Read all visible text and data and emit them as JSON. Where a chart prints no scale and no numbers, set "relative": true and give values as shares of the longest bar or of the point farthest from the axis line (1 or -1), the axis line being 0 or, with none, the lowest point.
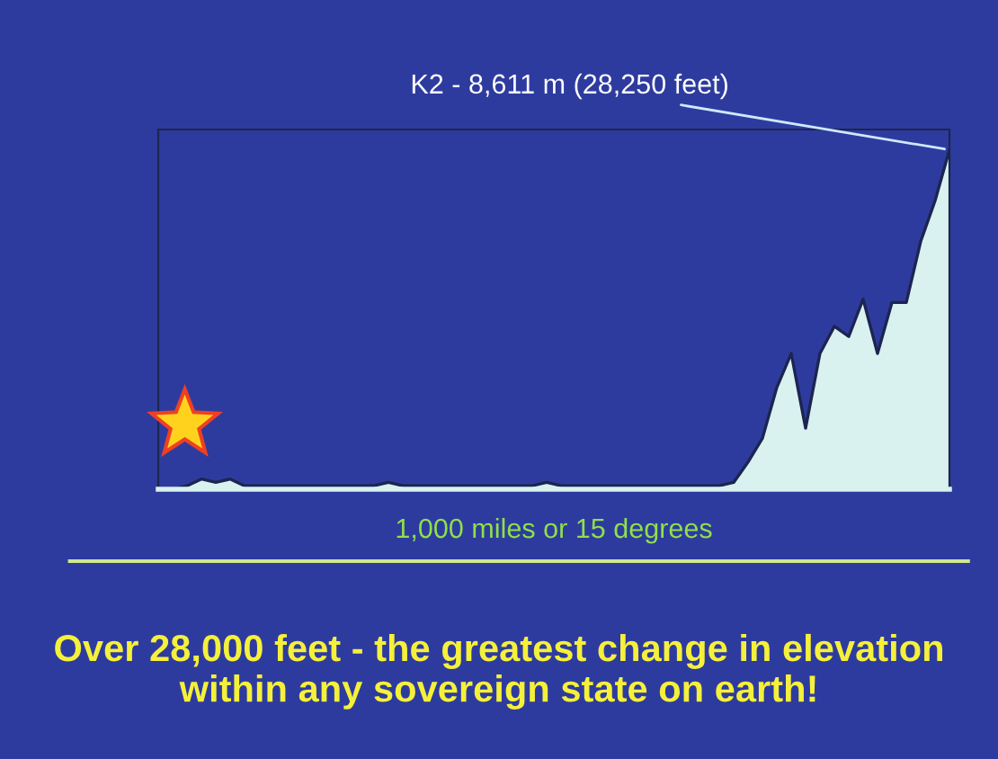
{
  "chart_data": {
    "type": "area",
    "relative": true,
    "categories": [
      null,
      null,
      null,
      null,
      null,
      null,
      null,
      null,
      null,
      null,
      null,
      null,
      null,
      null,
      null,
      null,
      null,
      null,
      null,
      null,
      null,
      null,
      null,
      null,
      null,
      null,
      null,
      null,
      null,
      null,
      null,
      null,
      null,
      null,
      null,
      null,
      null,
      null,
      null,
      null,
      null,
      null,
      null,
      null,
      null,
      null,
      null,
      null,
      null,
      null,
      null,
      null,
      null,
      null,
      null,
      null
    ],
    "series": [
      {
        "color": "#d9f2f0",
        "values": [
          0,
          0,
          0.01,
          0.03,
          0.02,
          0.03,
          0.01,
          0.01,
          0.01,
          0.01,
          0.01,
          0.01,
          0.01,
          0.01,
          0.01,
          0.01,
          0.02,
          0.01,
          0.01,
          0.01,
          0.01,
          0.01,
          0.01,
          0.01,
          0.01,
          0.01,
          0.01,
          0.02,
          0.01,
          0.01,
          0.01,
          0.01,
          0.01,
          0.01,
          0.01,
          0.01,
          0.01,
          0.01,
          0.01,
          0.01,
          0.02,
          0.08,
          0.15,
          0.3,
          0.4,
          0.18,
          0.4,
          0.48,
          0.45,
          0.56,
          0.4,
          0.55,
          0.55,
          0.73,
          0.85,
          1.0
        ]
      }
    ],
    "xlabel": "1,000 miles or 15 degrees",
    "annotations": [
      "K2 - 8,611 m (28,250 feet)",
      "Over 28,000 feet - the greatest change in elevation within any sovereign state on earth!"
    ],
    "grid": false,
    "legend": false
  }
}
